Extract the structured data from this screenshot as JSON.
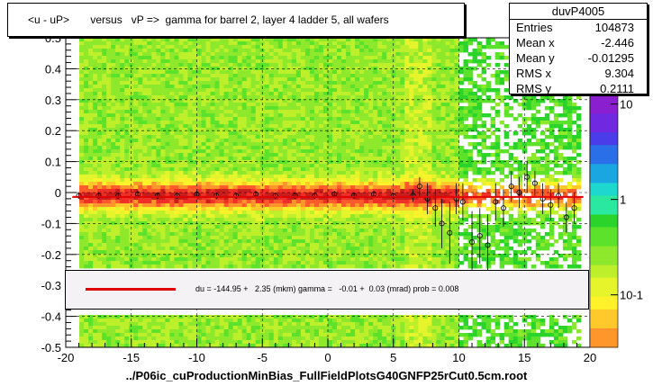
{
  "title": "<u - uP>       versus   vP =>  gamma for barrel 2, layer 4 ladder 5, all wafers",
  "stats": {
    "name": "duvP4005",
    "rows": [
      {
        "label": "Entries",
        "value": "104873"
      },
      {
        "label": "Mean x",
        "value": "-2.446"
      },
      {
        "label": "Mean y",
        "value": "-0.01295"
      },
      {
        "label": "RMS x",
        "value": "9.304"
      },
      {
        "label": "RMS y",
        "value": "0.2111"
      }
    ]
  },
  "legend_text": "du = -144.95 +   2.35 (mkm) gamma =   -0.01 +  0.03 (mrad) prob = 0.008",
  "footer": "../P06ic_cuProductionMinBias_FullFieldPlotsG40GNFP25rCut0.5cm.root",
  "colors": {
    "fit_line": "#e00000",
    "frame": "#000000"
  },
  "chart_data": {
    "type": "heatmap",
    "title": "<u - uP>       versus   vP =>  gamma for barrel 2, layer 4 ladder 5, all wafers",
    "xlim": [
      -20,
      20
    ],
    "ylim": [
      -0.5,
      0.5
    ],
    "x_ticks": [
      -20,
      -15,
      -10,
      -5,
      0,
      5,
      10,
      15,
      20
    ],
    "y_ticks": [
      -0.5,
      -0.4,
      -0.3,
      -0.2,
      -0.1,
      0,
      0.1,
      0.2,
      0.3,
      0.4,
      0.5
    ],
    "z_ticks": [
      {
        "value": 10,
        "label": "10"
      },
      {
        "value": 1,
        "label": "1"
      },
      {
        "value": 0.1,
        "label": "10-1"
      }
    ],
    "z_scale": "log",
    "grid": true,
    "profile_points": {
      "x": [
        -19.0,
        -17.5,
        -16.0,
        -14.5,
        -13.0,
        -11.5,
        -10.0,
        -8.5,
        -7.0,
        -5.5,
        -4.0,
        -2.5,
        -1.0,
        0.5,
        2.0,
        3.5,
        5.0,
        6.5,
        7.0,
        7.6,
        8.2,
        8.7,
        9.3,
        9.8,
        10.3,
        11.0,
        11.6,
        12.2,
        12.8,
        13.4,
        14.0,
        14.6,
        15.2,
        15.8,
        16.4,
        17.0,
        17.6,
        18.2,
        18.8
      ],
      "y": [
        -0.01,
        -0.01,
        -0.01,
        -0.005,
        -0.01,
        -0.01,
        -0.005,
        -0.01,
        -0.01,
        -0.005,
        -0.01,
        -0.01,
        -0.01,
        -0.005,
        -0.01,
        -0.005,
        -0.01,
        -0.01,
        0.02,
        -0.02,
        -0.05,
        -0.1,
        -0.13,
        -0.02,
        -0.03,
        -0.16,
        -0.14,
        -0.17,
        -0.03,
        -0.05,
        0.02,
        0.0,
        0.05,
        0.03,
        -0.02,
        -0.04,
        -0.01,
        -0.08,
        -0.05
      ],
      "err": [
        0.01,
        0.01,
        0.01,
        0.01,
        0.01,
        0.01,
        0.01,
        0.01,
        0.01,
        0.01,
        0.01,
        0.01,
        0.01,
        0.01,
        0.01,
        0.01,
        0.01,
        0.02,
        0.03,
        0.05,
        0.06,
        0.08,
        0.1,
        0.05,
        0.06,
        0.1,
        0.09,
        0.1,
        0.06,
        0.06,
        0.05,
        0.05,
        0.05,
        0.04,
        0.05,
        0.05,
        0.04,
        0.05,
        0.05
      ]
    },
    "fit_line": {
      "x": [
        -19.5,
        19.5
      ],
      "y": [
        -0.014,
        -0.014
      ]
    }
  }
}
